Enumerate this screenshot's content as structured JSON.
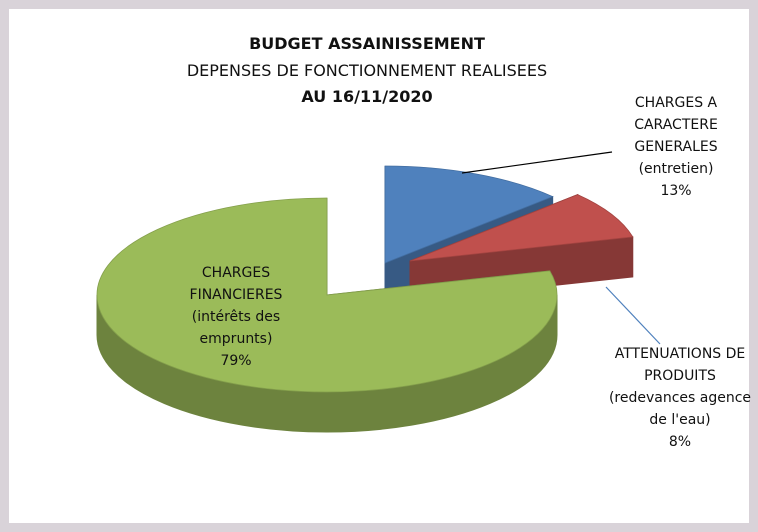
{
  "chart_data": {
    "type": "pie",
    "title": "BUDGET ASSAINISSEMENT",
    "subtitle": "DEPENSES DE FONCTIONNEMENT REALISEES",
    "date_line": "AU 16/11/2020",
    "categories": [
      "CHARGES A CARACTERE GENERALES (entretien)",
      "ATTENUATIONS DE PRODUITS (redevances agence de l'eau)",
      "CHARGES FINANCIERES (intérêts des emprunts)"
    ],
    "values": [
      13,
      8,
      79
    ],
    "value_labels": [
      "13%",
      "8%",
      "79%"
    ],
    "colors": [
      "#4f81bd",
      "#c0504d",
      "#9bbb59"
    ]
  }
}
